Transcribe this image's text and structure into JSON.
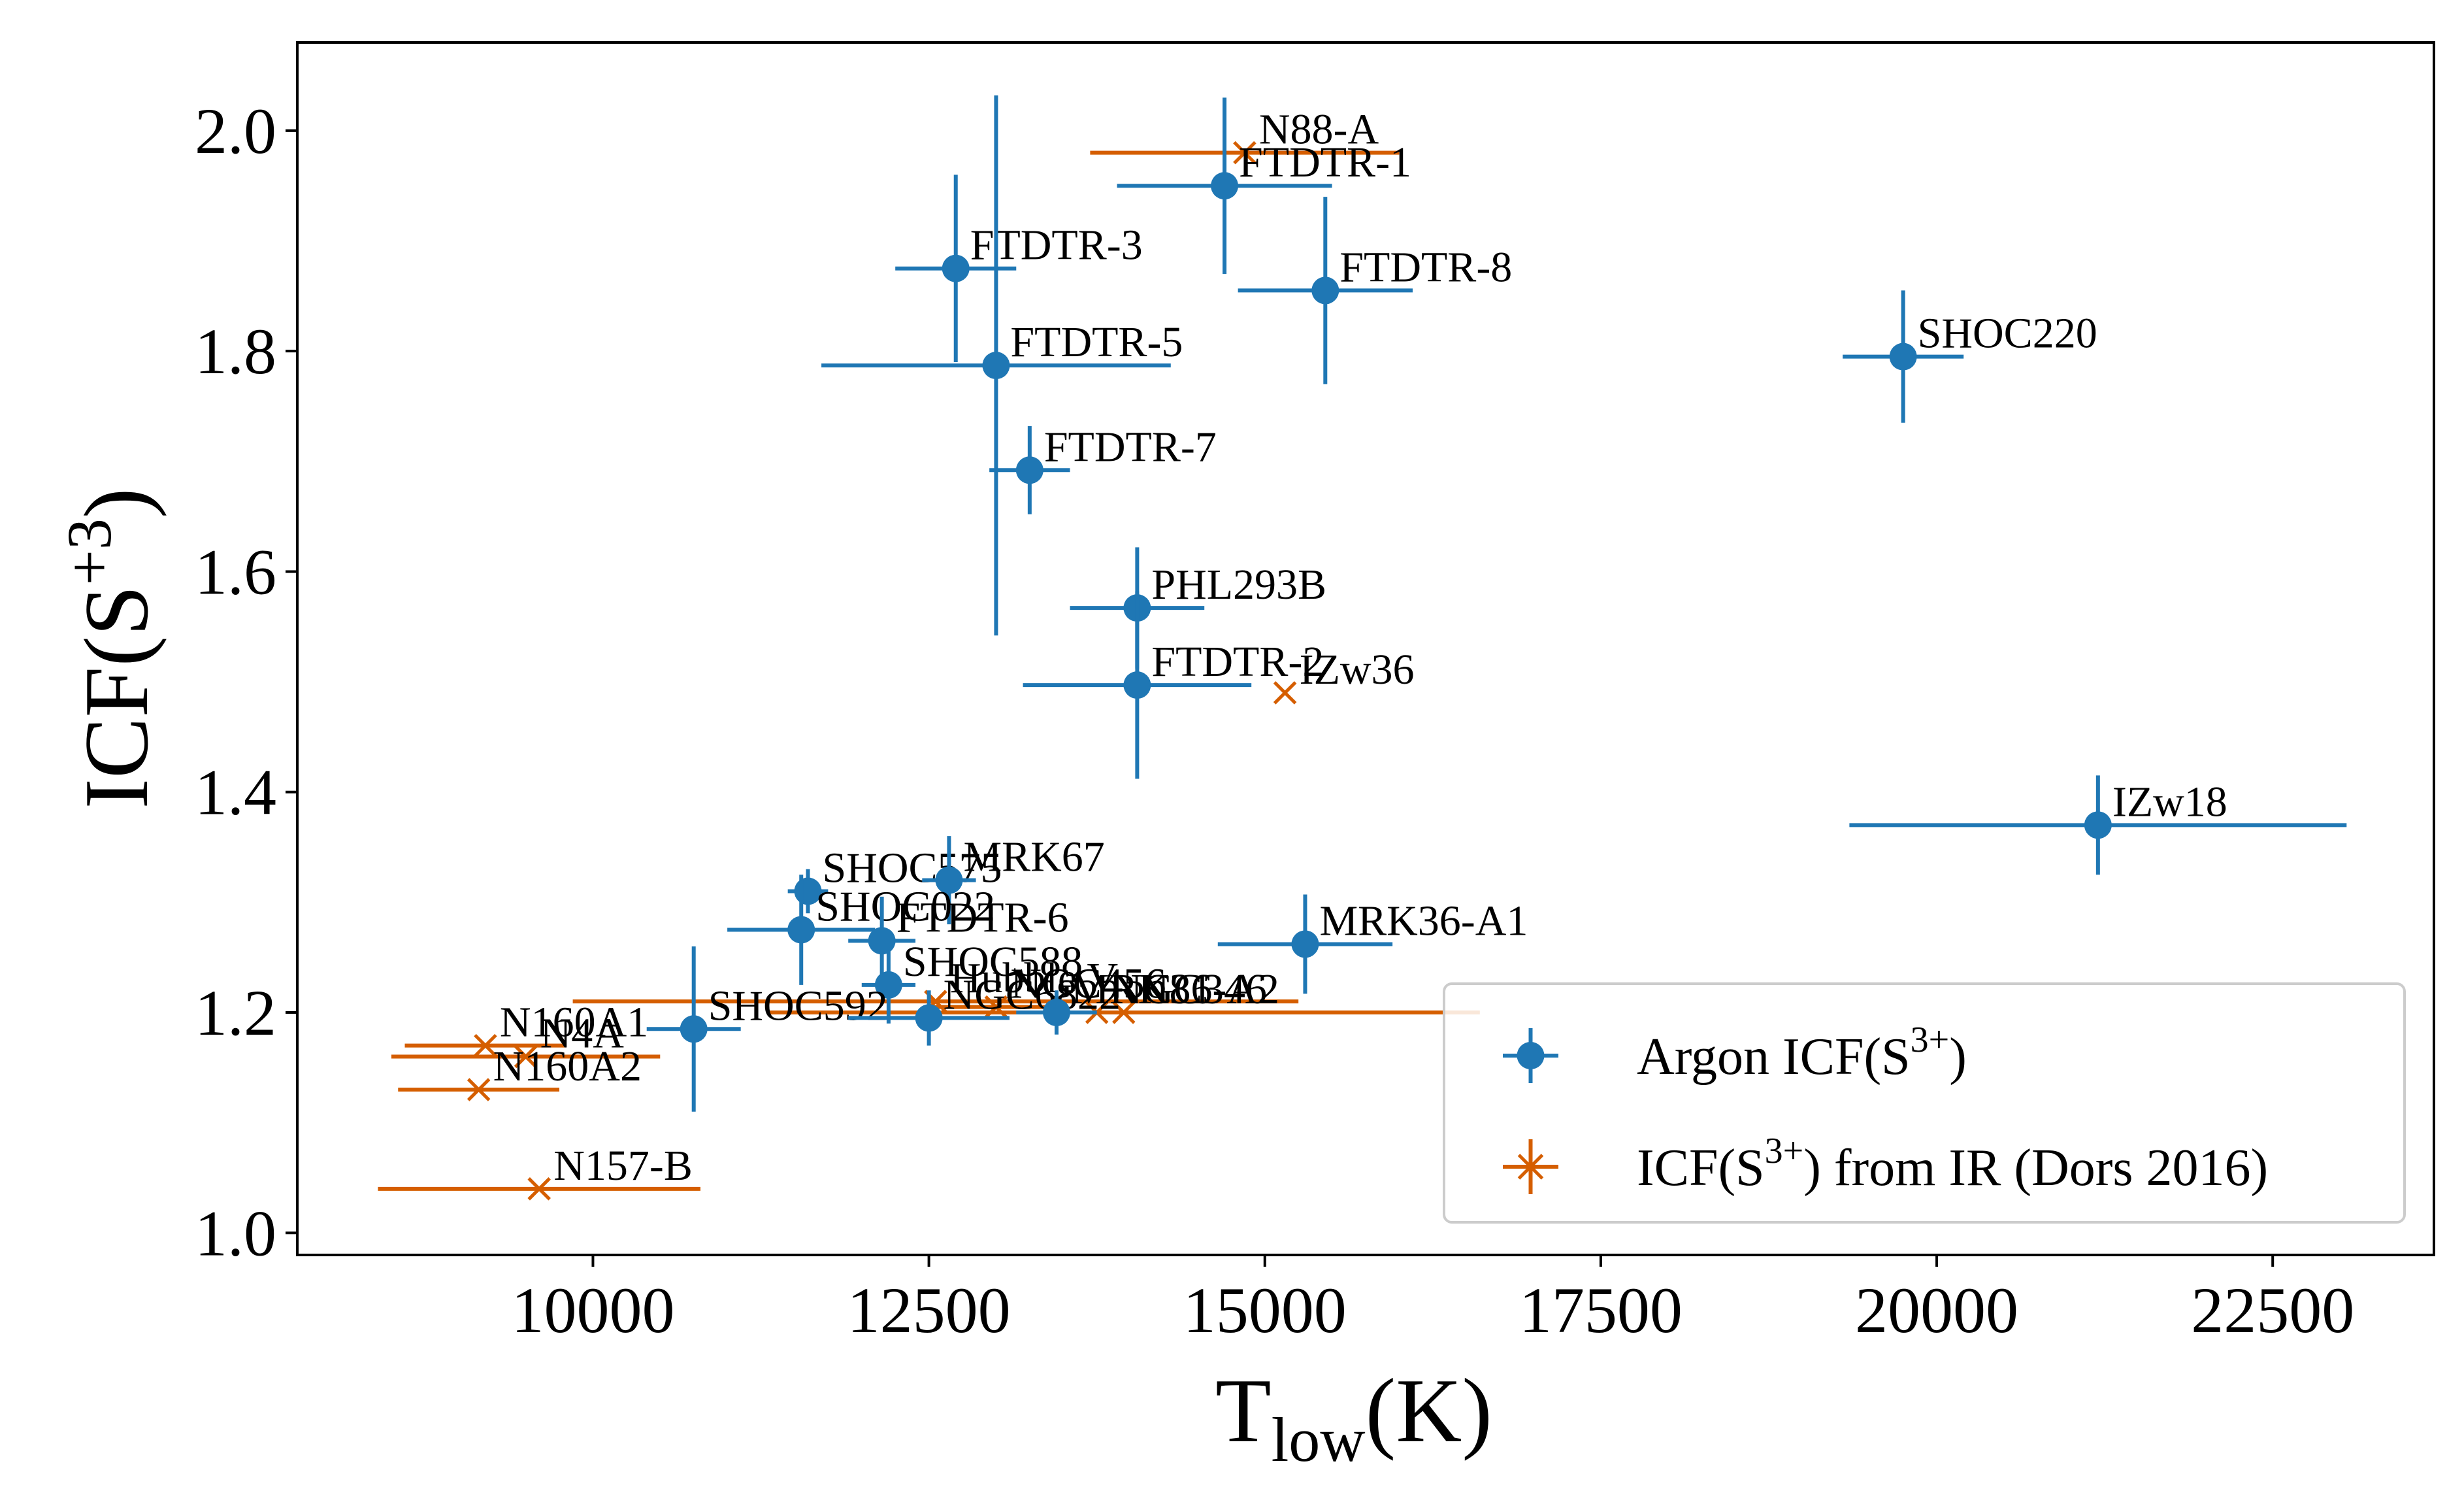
{
  "chart_data": {
    "type": "scatter",
    "title": "",
    "xlabel": {
      "main": "T",
      "sub": "low",
      "suffix": "(K)"
    },
    "ylabel": {
      "main": "ICF(S",
      "sup": "+3",
      "suffix": ")"
    },
    "xlim": [
      7800,
      23700
    ],
    "ylim": [
      0.98,
      2.08
    ],
    "grid": false,
    "xticks": [
      {
        "v": 10000,
        "label": "10000"
      },
      {
        "v": 12500,
        "label": "12500"
      },
      {
        "v": 15000,
        "label": "15000"
      },
      {
        "v": 17500,
        "label": "17500"
      },
      {
        "v": 20000,
        "label": "20000"
      },
      {
        "v": 22500,
        "label": "22500"
      }
    ],
    "yticks": [
      {
        "v": 1.0,
        "label": "1.0"
      },
      {
        "v": 1.2,
        "label": "1.2"
      },
      {
        "v": 1.4,
        "label": "1.4"
      },
      {
        "v": 1.6,
        "label": "1.6"
      },
      {
        "v": 1.8,
        "label": "1.8"
      },
      {
        "v": 2.0,
        "label": "2.0"
      }
    ],
    "colors": {
      "argon": "#1f77b4",
      "ir": "#d55e00"
    },
    "legend": {
      "position": "lower-right",
      "entries": [
        {
          "series": "argon",
          "text": "Argon ICF(S",
          "sup": "3+",
          "suffix": ")"
        },
        {
          "series": "ir",
          "text": "ICF(S",
          "sup": "3+",
          "suffix": ") from IR (Dors 2016)"
        }
      ]
    },
    "series": [
      {
        "name": "ir",
        "points": [
          {
            "x": 14850,
            "y": 1.98,
            "xerr": 1150,
            "yerr": 0,
            "label": "N88-A"
          },
          {
            "x": 15150,
            "y": 1.49,
            "xerr": 0,
            "yerr": 0,
            "label": "IZw36"
          },
          {
            "x": 9200,
            "y": 1.17,
            "xerr": 600,
            "yerr": 0,
            "label": "N160A1"
          },
          {
            "x": 9500,
            "y": 1.16,
            "xerr": 1000,
            "yerr": 0,
            "label": "N4A"
          },
          {
            "x": 9150,
            "y": 1.13,
            "xerr": 600,
            "yerr": 0,
            "label": "N160A2"
          },
          {
            "x": 9600,
            "y": 1.04,
            "xerr": 1200,
            "yerr": 0,
            "label": "N157-B"
          },
          {
            "x": 12550,
            "y": 1.21,
            "xerr": 2700,
            "yerr": 0,
            "label": "Hubble V"
          },
          {
            "x": 13000,
            "y": 1.205,
            "xerr": 500,
            "yerr": 0,
            "label": "NGC456"
          },
          {
            "x": 13750,
            "y": 1.2,
            "xerr": 300,
            "yerr": 0,
            "label": "NGC346"
          },
          {
            "x": 13950,
            "y": 1.2,
            "xerr": 2650,
            "yerr": 0,
            "label": "N81"
          }
        ]
      },
      {
        "name": "argon",
        "points": [
          {
            "x": 14700,
            "y": 1.95,
            "xerr": 800,
            "yerr": 0.08,
            "label": "FTDTR-1"
          },
          {
            "x": 12700,
            "y": 1.875,
            "xerr": 450,
            "yerr": 0.085,
            "label": "FTDTR-3"
          },
          {
            "x": 15450,
            "y": 1.855,
            "xerr": 650,
            "yerr": 0.085,
            "label": "FTDTR-8"
          },
          {
            "x": 19750,
            "y": 1.795,
            "xerr": 450,
            "yerr": 0.06,
            "label": "SHOC220"
          },
          {
            "x": 13000,
            "y": 1.787,
            "xerr": 1300,
            "yerr": 0.245,
            "label": "FTDTR-5"
          },
          {
            "x": 13250,
            "y": 1.692,
            "xerr": 300,
            "yerr": 0.04,
            "label": "FTDTR-7"
          },
          {
            "x": 14050,
            "y": 1.567,
            "xerr": 500,
            "yerr": 0.055,
            "label": "PHL293B"
          },
          {
            "x": 14050,
            "y": 1.497,
            "xerr": 850,
            "yerr": 0.085,
            "label": "FTDTR-2"
          },
          {
            "x": 21200,
            "y": 1.37,
            "xerr": 1850,
            "yerr": 0.045,
            "label": "IZw18"
          },
          {
            "x": 11600,
            "y": 1.31,
            "xerr": 150,
            "yerr": 0.02,
            "label": "SHOC575"
          },
          {
            "x": 12650,
            "y": 1.32,
            "xerr": 200,
            "yerr": 0.04,
            "label": "MRK67"
          },
          {
            "x": 11550,
            "y": 1.275,
            "xerr": 550,
            "yerr": 0.05,
            "label": "SHOC022"
          },
          {
            "x": 12150,
            "y": 1.265,
            "xerr": 250,
            "yerr": 0.04,
            "label": "FTDTR-6"
          },
          {
            "x": 15300,
            "y": 1.262,
            "xerr": 650,
            "yerr": 0.045,
            "label": "MRK36-A1"
          },
          {
            "x": 12200,
            "y": 1.225,
            "xerr": 200,
            "yerr": 0.035,
            "label": "SHOC588"
          },
          {
            "x": 10750,
            "y": 1.185,
            "xerr": 350,
            "yerr": 0.075,
            "label": "SHOC592"
          },
          {
            "x": 12500,
            "y": 1.195,
            "xerr": 600,
            "yerr": 0.025,
            "label": "NGC6822"
          },
          {
            "x": 13450,
            "y": 1.2,
            "xerr": 300,
            "yerr": 0.02,
            "label": "MRK36-A2"
          }
        ]
      }
    ]
  }
}
